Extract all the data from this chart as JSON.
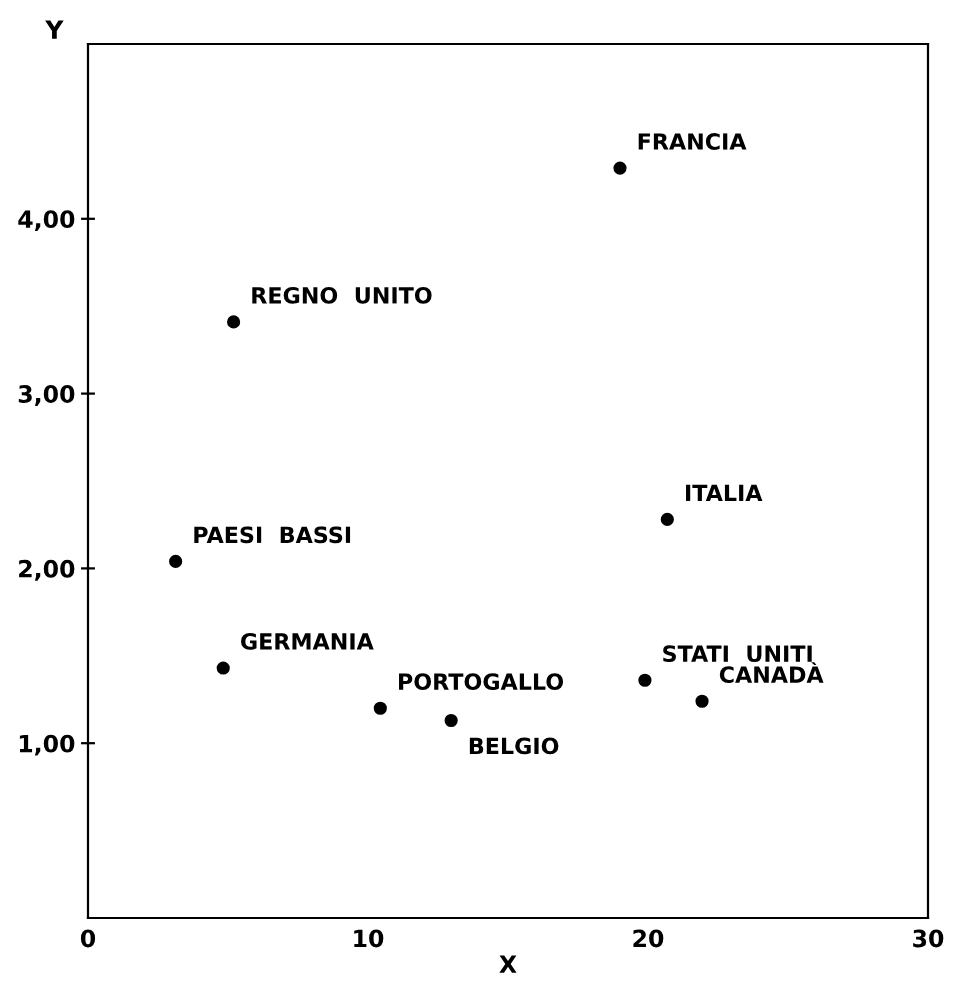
{
  "chart_data": {
    "type": "scatter",
    "xlabel": "X",
    "ylabel": "Y",
    "x": [
      19.0,
      5.2,
      3.13,
      20.69,
      4.83,
      19.89,
      10.44,
      21.93,
      12.97
    ],
    "series": [
      {
        "color": "#000000",
        "values": [
          4.29,
          3.41,
          2.04,
          2.28,
          1.43,
          1.36,
          1.2,
          1.24,
          1.13
        ]
      }
    ],
    "xlim": [
      0,
      30
    ],
    "ylim": [
      0,
      5.0
    ],
    "xticks": [
      0,
      10,
      20,
      30
    ],
    "yticks": [
      {
        "value": 1,
        "label": "1,00"
      },
      {
        "value": 2,
        "label": "2,00"
      },
      {
        "value": 3,
        "label": "3,00"
      },
      {
        "value": 4,
        "label": "4,00"
      }
    ],
    "marker": "circle",
    "grid": false,
    "legend": false,
    "annotations": [
      {
        "text": "FRANCIA",
        "x": 19.0,
        "y": 4.29
      },
      {
        "text": "REGNO  UNITO",
        "x": 5.2,
        "y": 3.41
      },
      {
        "text": "PAESI  BASSI",
        "x": 3.13,
        "y": 2.04
      },
      {
        "text": "ITALIA",
        "x": 20.69,
        "y": 2.28
      },
      {
        "text": "GERMANIA",
        "x": 4.83,
        "y": 1.43
      },
      {
        "text": "STATI  UNITI",
        "x": 19.89,
        "y": 1.36
      },
      {
        "text": "PORTOGALLO",
        "x": 10.44,
        "y": 1.2
      },
      {
        "text": "CANADÀ",
        "x": 21.93,
        "y": 1.24
      },
      {
        "text": "BELGIO",
        "x": 12.97,
        "y": 1.13
      }
    ]
  }
}
